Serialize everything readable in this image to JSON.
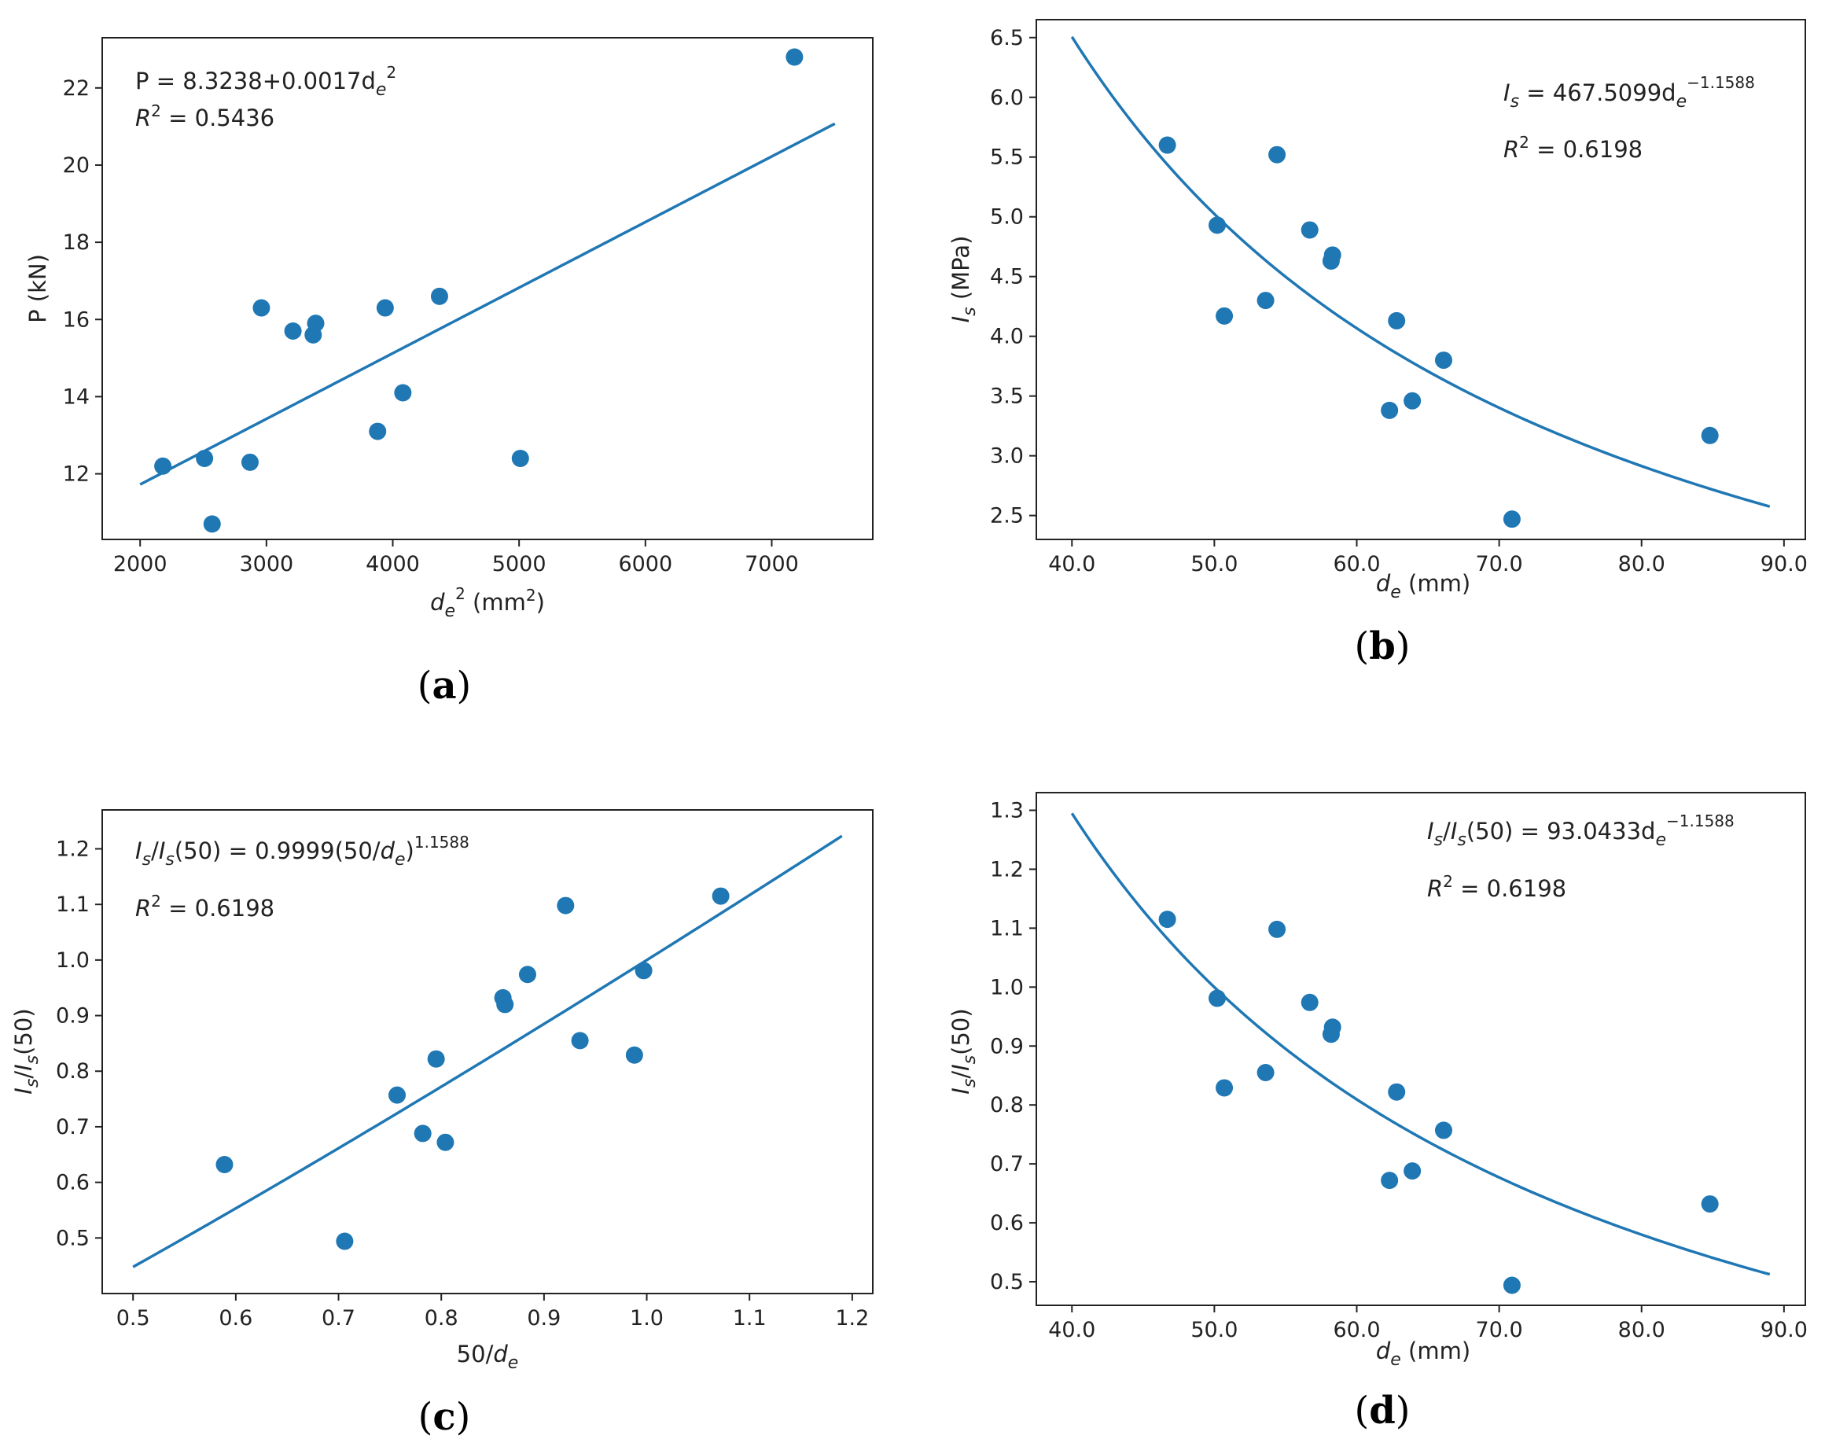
{
  "colors": {
    "series": "#1f77b4",
    "axes": "#222222"
  },
  "chart_data": [
    {
      "id": "a",
      "type": "scatter",
      "panel_label": "a",
      "xlabel": "d_e^2 (mm^2)",
      "ylabel": "P (kN)",
      "xlim": [
        1700,
        7800
      ],
      "ylim": [
        10.3,
        23.3
      ],
      "xticks": [
        2000,
        3000,
        4000,
        5000,
        6000,
        7000
      ],
      "yticks": [
        12,
        14,
        16,
        18,
        20,
        22
      ],
      "tick_format": "int",
      "points": [
        [
          2180,
          12.2
        ],
        [
          2510,
          12.4
        ],
        [
          2570,
          10.7
        ],
        [
          2870,
          12.3
        ],
        [
          2960,
          16.3
        ],
        [
          3210,
          15.7
        ],
        [
          3370,
          15.6
        ],
        [
          3390,
          15.9
        ],
        [
          3880,
          13.1
        ],
        [
          3940,
          16.3
        ],
        [
          4080,
          14.1
        ],
        [
          4370,
          16.6
        ],
        [
          5010,
          12.4
        ],
        [
          7180,
          22.8
        ]
      ],
      "fit": {
        "kind": "linear",
        "a": 8.3238,
        "b": 0.0017,
        "x_range": [
          2000,
          7500
        ]
      },
      "annotation": {
        "equation": "P = 8.3238+0.0017d_e^2",
        "r2": "R^2 = 0.5436",
        "r2_value": 0.5436,
        "placement": "top-left"
      }
    },
    {
      "id": "b",
      "type": "scatter",
      "panel_label": "b",
      "xlabel": "d_e (mm)",
      "ylabel": "I_s (MPa)",
      "xlim": [
        37.5,
        91.5
      ],
      "ylim": [
        2.3,
        6.65
      ],
      "xticks": [
        40,
        50,
        60,
        70,
        80,
        90
      ],
      "yticks": [
        2.5,
        3.0,
        3.5,
        4.0,
        4.5,
        5.0,
        5.5,
        6.0,
        6.5
      ],
      "tick_format": "1",
      "points": [
        [
          46.7,
          5.6
        ],
        [
          50.2,
          4.93
        ],
        [
          50.7,
          4.17
        ],
        [
          53.6,
          4.3
        ],
        [
          54.4,
          5.52
        ],
        [
          56.7,
          4.89
        ],
        [
          58.2,
          4.63
        ],
        [
          58.3,
          4.68
        ],
        [
          62.3,
          3.38
        ],
        [
          62.8,
          4.13
        ],
        [
          63.9,
          3.46
        ],
        [
          66.1,
          3.8
        ],
        [
          70.9,
          2.47
        ],
        [
          84.8,
          3.17
        ]
      ],
      "fit": {
        "kind": "power",
        "a": 467.5099,
        "b": -1.1588,
        "x_range": [
          40,
          89
        ]
      },
      "annotation": {
        "equation": "I_s = 467.5099d_e^-1.1588",
        "r2": "R^2 = 0.6198",
        "r2_value": 0.6198,
        "placement": "top-right"
      }
    },
    {
      "id": "c",
      "type": "scatter",
      "panel_label": "c",
      "xlabel": "50/d_e",
      "ylabel": "I_s/I_s(50)",
      "xlim": [
        0.47,
        1.22
      ],
      "ylim": [
        0.4,
        1.27
      ],
      "xticks": [
        0.5,
        0.6,
        0.7,
        0.8,
        0.9,
        1.0,
        1.1,
        1.2
      ],
      "yticks": [
        0.5,
        0.6,
        0.7,
        0.8,
        0.9,
        1.0,
        1.1,
        1.2
      ],
      "tick_format": "1",
      "points": [
        [
          0.589,
          0.632
        ],
        [
          0.706,
          0.494
        ],
        [
          0.757,
          0.757
        ],
        [
          0.782,
          0.688
        ],
        [
          0.795,
          0.822
        ],
        [
          0.804,
          0.672
        ],
        [
          0.86,
          0.932
        ],
        [
          0.862,
          0.92
        ],
        [
          0.884,
          0.974
        ],
        [
          0.921,
          1.098
        ],
        [
          0.935,
          0.855
        ],
        [
          0.988,
          0.829
        ],
        [
          0.997,
          0.981
        ],
        [
          1.072,
          1.115
        ]
      ],
      "fit": {
        "kind": "power",
        "a": 0.9999,
        "b": 1.1588,
        "x_range": [
          0.5,
          1.19
        ]
      },
      "annotation": {
        "equation": "I_s/I_s(50) = 0.9999(50/d_e)^1.1588",
        "r2": "R^2 = 0.6198",
        "r2_value": 0.6198,
        "placement": "top-left"
      }
    },
    {
      "id": "d",
      "type": "scatter",
      "panel_label": "d",
      "xlabel": "d_e (mm)",
      "ylabel": "I_s/I_s(50)",
      "xlim": [
        37.5,
        91.5
      ],
      "ylim": [
        0.46,
        1.33
      ],
      "xticks": [
        40,
        50,
        60,
        70,
        80,
        90
      ],
      "yticks": [
        0.5,
        0.6,
        0.7,
        0.8,
        0.9,
        1.0,
        1.1,
        1.2,
        1.3
      ],
      "tick_format": "1",
      "points": [
        [
          46.7,
          1.115
        ],
        [
          50.2,
          0.981
        ],
        [
          50.7,
          0.829
        ],
        [
          53.6,
          0.855
        ],
        [
          54.4,
          1.098
        ],
        [
          56.7,
          0.974
        ],
        [
          58.2,
          0.92
        ],
        [
          58.3,
          0.932
        ],
        [
          62.3,
          0.672
        ],
        [
          62.8,
          0.822
        ],
        [
          63.9,
          0.688
        ],
        [
          66.1,
          0.757
        ],
        [
          70.9,
          0.494
        ],
        [
          84.8,
          0.632
        ]
      ],
      "fit": {
        "kind": "power",
        "a": 93.0433,
        "b": -1.1588,
        "x_range": [
          40,
          89
        ]
      },
      "annotation": {
        "equation": "I_s/I_s(50) = 93.0433d_e^-1.1588",
        "r2": "R^2 = 0.6198",
        "r2_value": 0.6198,
        "placement": "top-right"
      }
    }
  ]
}
